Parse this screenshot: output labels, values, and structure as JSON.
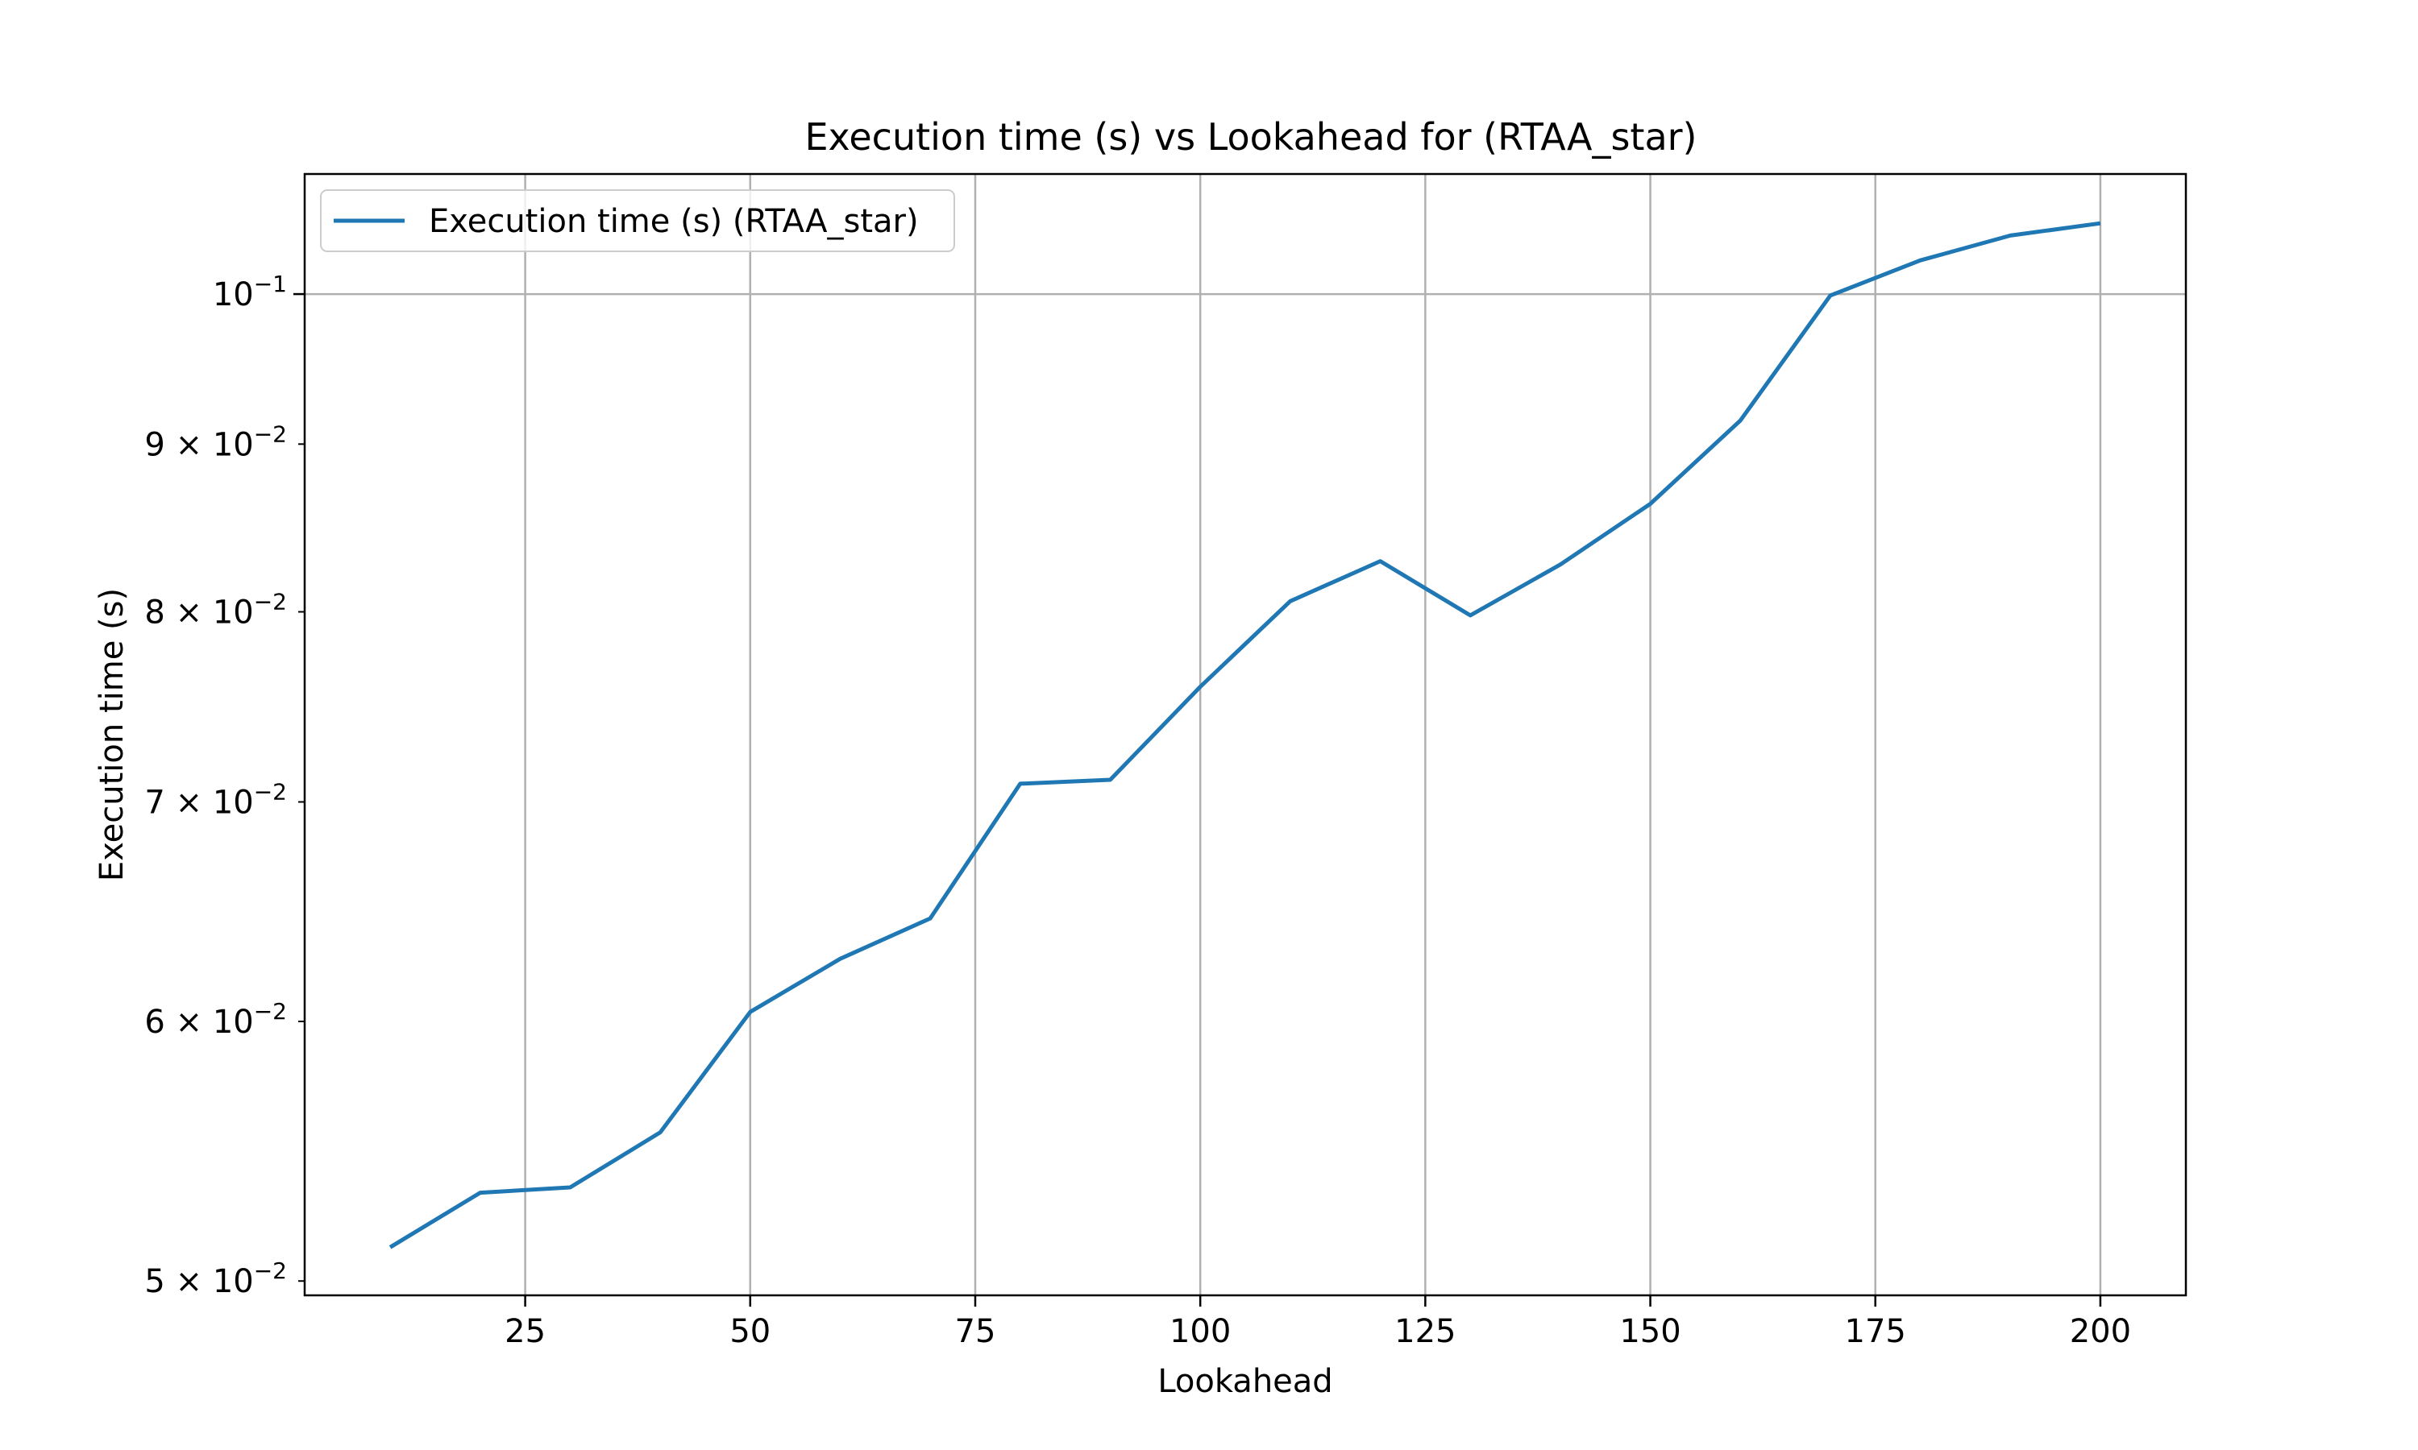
{
  "chart_data": {
    "type": "line",
    "title": "Execution time (s) vs Lookahead for  (RTAA_star)",
    "xlabel": "Lookahead",
    "ylabel": "Execution time (s)",
    "y_scale": "log",
    "grid": true,
    "legend_position": "top-left",
    "xlim": [
      0.5,
      209.5
    ],
    "ylim": [
      0.0495,
      0.1088
    ],
    "x_ticks": [
      25,
      50,
      75,
      100,
      125,
      150,
      175,
      200
    ],
    "y_ticks": [
      {
        "value": 0.05,
        "mantissa": "5",
        "exponent": "−2"
      },
      {
        "value": 0.06,
        "mantissa": "6",
        "exponent": "−2"
      },
      {
        "value": 0.07,
        "mantissa": "7",
        "exponent": "−2"
      },
      {
        "value": 0.08,
        "mantissa": "8",
        "exponent": "−2"
      },
      {
        "value": 0.09,
        "mantissa": "9",
        "exponent": "−2"
      },
      {
        "value": 0.1,
        "mantissa": "",
        "exponent": "−1"
      }
    ],
    "series": [
      {
        "name": "Execution time (s) (RTAA_star)",
        "color": "#1f77b4",
        "x": [
          10,
          20,
          30,
          40,
          50,
          60,
          70,
          80,
          90,
          100,
          110,
          120,
          130,
          140,
          150,
          160,
          170,
          180,
          190,
          200
        ],
        "y": [
          0.0512,
          0.0532,
          0.0534,
          0.0555,
          0.0604,
          0.0627,
          0.0645,
          0.0709,
          0.0711,
          0.0759,
          0.0806,
          0.0829,
          0.0798,
          0.0827,
          0.0863,
          0.0915,
          0.0999,
          0.1024,
          0.1042,
          0.1051
        ]
      }
    ]
  }
}
